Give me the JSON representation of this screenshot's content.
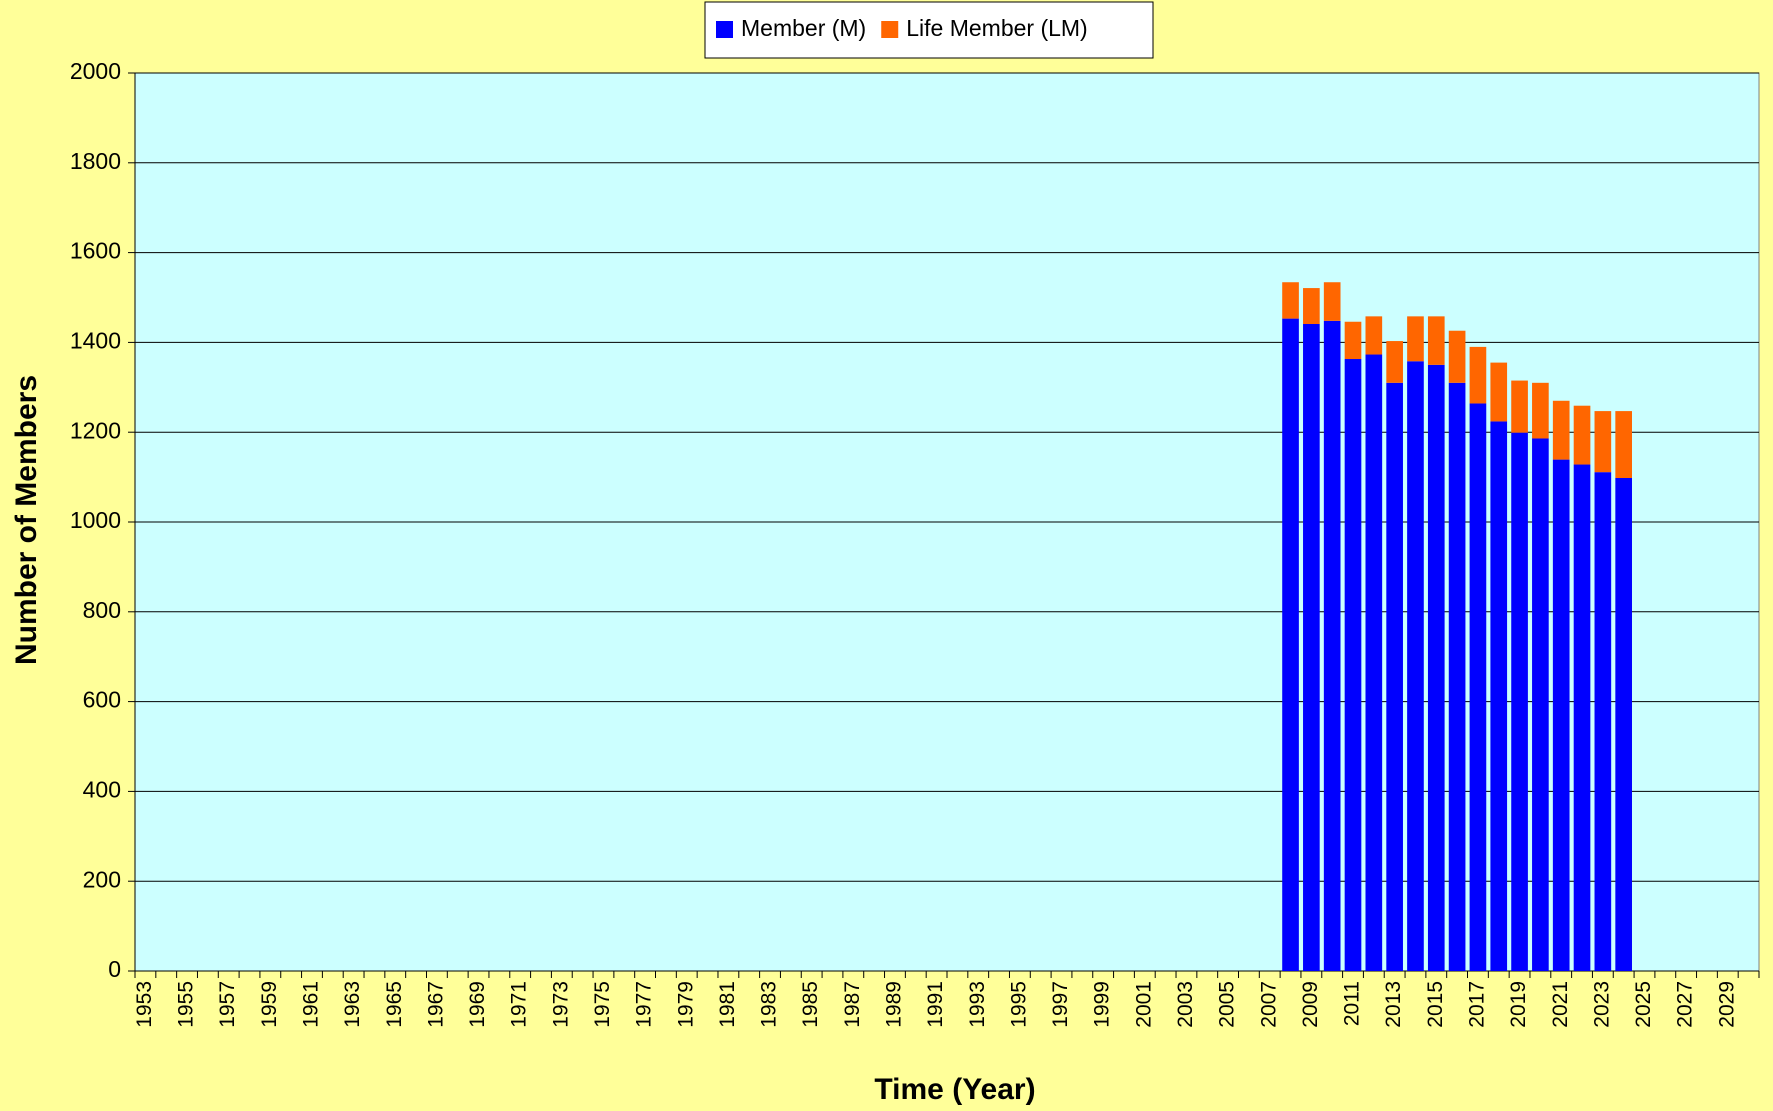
{
  "chart_data": {
    "type": "stacked-bar",
    "x_label": "Time (Year)",
    "y_label": "Number of Members",
    "categories": [
      "1953",
      null,
      "1955",
      null,
      "1957",
      null,
      "1959",
      null,
      "1961",
      null,
      "1963",
      null,
      "1965",
      null,
      "1967",
      null,
      "1969",
      null,
      "1971",
      null,
      "1973",
      null,
      "1975",
      null,
      "1977",
      null,
      "1979",
      null,
      "1981",
      null,
      "1983",
      null,
      "1985",
      null,
      "1987",
      null,
      "1989",
      null,
      "1991",
      null,
      "1993",
      null,
      "1995",
      null,
      "1997",
      null,
      "1999",
      null,
      "2001",
      null,
      "2003",
      null,
      "2005",
      null,
      "2007",
      null,
      "2009",
      null,
      "2011",
      null,
      "2013",
      null,
      "2015",
      null,
      "2017",
      null,
      "2019",
      null,
      "2021",
      null,
      "2023",
      null,
      "2025",
      null,
      "2027",
      null,
      "2029",
      null
    ],
    "series": [
      {
        "name": "Member (M)",
        "color": "#0000ff",
        "values": [
          null,
          null,
          null,
          null,
          null,
          null,
          null,
          null,
          null,
          null,
          null,
          null,
          null,
          null,
          null,
          null,
          null,
          null,
          null,
          null,
          null,
          null,
          null,
          null,
          null,
          null,
          null,
          null,
          null,
          null,
          null,
          null,
          null,
          null,
          null,
          null,
          null,
          null,
          null,
          null,
          null,
          null,
          null,
          null,
          null,
          null,
          null,
          null,
          null,
          null,
          null,
          null,
          null,
          null,
          null,
          1453,
          1441,
          1448,
          1363,
          1373,
          1310,
          1358,
          1350,
          1310,
          1264,
          1224,
          1199,
          1186,
          1139,
          1128,
          1111,
          1098,
          null,
          null,
          null,
          null,
          null,
          null
        ]
      },
      {
        "name": "Life Member (LM)",
        "color": "#ff6600",
        "values": [
          null,
          null,
          null,
          null,
          null,
          null,
          null,
          null,
          null,
          null,
          null,
          null,
          null,
          null,
          null,
          null,
          null,
          null,
          null,
          null,
          null,
          null,
          null,
          null,
          null,
          null,
          null,
          null,
          null,
          null,
          null,
          null,
          null,
          null,
          null,
          null,
          null,
          null,
          null,
          null,
          null,
          null,
          null,
          null,
          null,
          null,
          null,
          null,
          null,
          null,
          null,
          null,
          null,
          null,
          null,
          81,
          80,
          86,
          83,
          85,
          93,
          100,
          108,
          116,
          126,
          131,
          116,
          124,
          131,
          131,
          136,
          149,
          null,
          null,
          null,
          null,
          null,
          null
        ]
      }
    ],
    "ylim": [
      0,
      2000
    ],
    "yticks": [
      0,
      200,
      400,
      600,
      800,
      1000,
      1200,
      1400,
      1600,
      1800,
      2000
    ],
    "grid": true,
    "legend": "top"
  }
}
